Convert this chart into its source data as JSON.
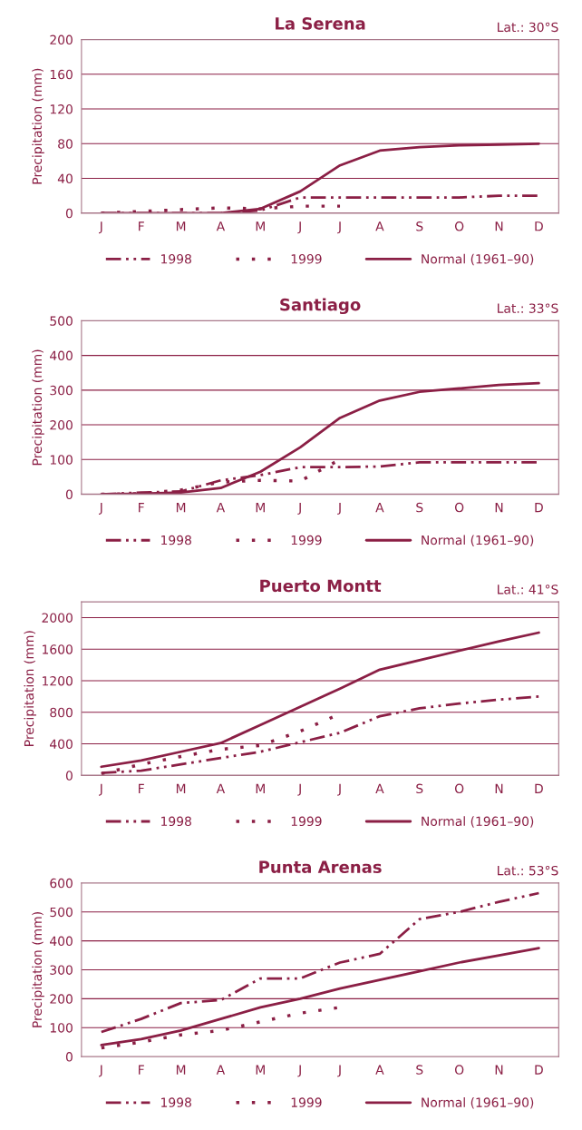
{
  "chart_data": [
    {
      "type": "line",
      "title": "La Serena",
      "ylabel": "Precipitation (mm)",
      "annotations": [
        "Lat.: 30°S"
      ],
      "categories": [
        "J",
        "F",
        "M",
        "A",
        "M",
        "J",
        "J",
        "A",
        "S",
        "O",
        "N",
        "D"
      ],
      "series": [
        {
          "name": "1998",
          "color": "#8b1f45",
          "line_style": "dashed",
          "values": [
            0,
            0,
            0,
            0,
            3,
            18,
            18,
            18,
            18,
            18,
            20,
            20
          ]
        },
        {
          "name": "1999",
          "color": "#8b1f45",
          "line_style": "dotted",
          "values": [
            0,
            2,
            4,
            6,
            5,
            8,
            8,
            null,
            null,
            null,
            null,
            null
          ]
        },
        {
          "name": "Normal (1961–90)",
          "color": "#8b1f45",
          "line_style": "solid",
          "values": [
            0,
            0,
            0,
            0,
            5,
            25,
            55,
            72,
            76,
            78,
            79,
            80
          ]
        }
      ],
      "ylim": [
        0,
        200
      ],
      "yticks": [
        0,
        40,
        80,
        120,
        160,
        200
      ],
      "grid": "y",
      "legend": "bottom"
    },
    {
      "type": "line",
      "title": "Santiago",
      "ylabel": "Precipitation (mm)",
      "annotations": [
        "Lat.: 33°S"
      ],
      "categories": [
        "J",
        "F",
        "M",
        "A",
        "M",
        "J",
        "J",
        "A",
        "S",
        "O",
        "N",
        "D"
      ],
      "series": [
        {
          "name": "1998",
          "color": "#8b1f45",
          "line_style": "dashed",
          "values": [
            0,
            5,
            8,
            40,
            55,
            78,
            78,
            80,
            92,
            92,
            92,
            92
          ]
        },
        {
          "name": "1999",
          "color": "#8b1f45",
          "line_style": "dotted",
          "values": [
            0,
            2,
            12,
            35,
            40,
            38,
            100,
            null,
            null,
            null,
            null,
            null
          ]
        },
        {
          "name": "Normal (1961–90)",
          "color": "#8b1f45",
          "line_style": "solid",
          "values": [
            0,
            2,
            5,
            18,
            65,
            135,
            220,
            270,
            295,
            305,
            315,
            320
          ]
        }
      ],
      "ylim": [
        0,
        500
      ],
      "yticks": [
        0,
        100,
        200,
        300,
        400,
        500
      ],
      "grid": "y",
      "legend": "bottom"
    },
    {
      "type": "line",
      "title": "Puerto Montt",
      "ylabel": "Precipitation (mm)",
      "annotations": [
        "Lat.: 41°S"
      ],
      "categories": [
        "J",
        "F",
        "M",
        "A",
        "M",
        "J",
        "J",
        "A",
        "S",
        "O",
        "N",
        "D"
      ],
      "series": [
        {
          "name": "1998",
          "color": "#8b1f45",
          "line_style": "dashed",
          "values": [
            30,
            60,
            140,
            220,
            300,
            420,
            540,
            750,
            850,
            910,
            960,
            1000
          ]
        },
        {
          "name": "1999",
          "color": "#8b1f45",
          "line_style": "dotted",
          "values": [
            20,
            140,
            240,
            330,
            380,
            560,
            780,
            null,
            null,
            null,
            null,
            null
          ]
        },
        {
          "name": "Normal (1961–90)",
          "color": "#8b1f45",
          "line_style": "solid",
          "values": [
            110,
            190,
            300,
            410,
            640,
            870,
            1100,
            1340,
            1460,
            1580,
            1700,
            1810
          ]
        }
      ],
      "ylim": [
        0,
        2200
      ],
      "yticks": [
        0,
        400,
        800,
        1200,
        1600,
        2000
      ],
      "grid": "y",
      "legend": "bottom"
    },
    {
      "type": "line",
      "title": "Punta Arenas",
      "ylabel": "Precipitation (mm)",
      "annotations": [
        "Lat.: 53°S"
      ],
      "categories": [
        "J",
        "F",
        "M",
        "A",
        "M",
        "J",
        "J",
        "A",
        "S",
        "O",
        "N",
        "D"
      ],
      "series": [
        {
          "name": "1998",
          "color": "#8b1f45",
          "line_style": "dashed",
          "values": [
            85,
            130,
            185,
            195,
            270,
            270,
            325,
            355,
            475,
            500,
            535,
            565
          ]
        },
        {
          "name": "1999",
          "color": "#8b1f45",
          "line_style": "dotted",
          "values": [
            30,
            50,
            75,
            90,
            120,
            150,
            170,
            null,
            null,
            null,
            null,
            null
          ]
        },
        {
          "name": "Normal (1961–90)",
          "color": "#8b1f45",
          "line_style": "solid",
          "values": [
            40,
            60,
            90,
            130,
            170,
            200,
            235,
            265,
            295,
            325,
            350,
            375
          ]
        }
      ],
      "ylim": [
        0,
        600
      ],
      "yticks": [
        0,
        100,
        200,
        300,
        400,
        500,
        600
      ],
      "grid": "y",
      "legend": "bottom"
    }
  ]
}
